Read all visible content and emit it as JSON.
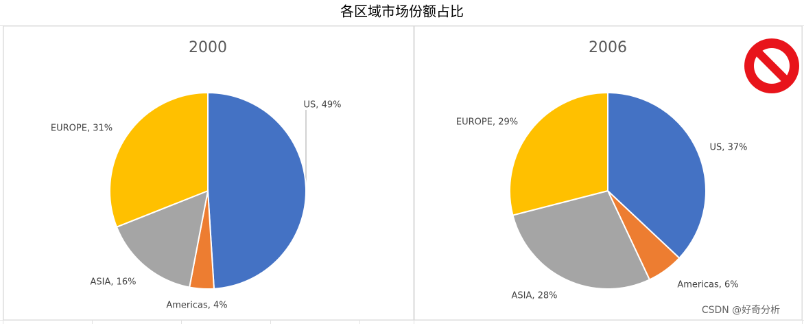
{
  "header": {
    "title": "各区域市场份额占比"
  },
  "watermark": "CSDN @好奇分析",
  "chart_data": [
    {
      "type": "pie",
      "title": "2000",
      "values": [
        49,
        4,
        16,
        31
      ],
      "value_labels": [
        "US, 49%",
        "Americas, 4%",
        "ASIA, 16%",
        "EUROPE, 31%"
      ],
      "colors": [
        "#4472c4",
        "#ed7d31",
        "#a5a5a5",
        "#ffc000"
      ]
    },
    {
      "type": "pie",
      "title": "2006",
      "values": [
        37,
        6,
        28,
        29
      ],
      "value_labels": [
        "US, 37%",
        "Americas, 6%",
        "ASIA, 28%",
        "EUROPE, 29%"
      ],
      "colors": [
        "#4472c4",
        "#ed7d31",
        "#a5a5a5",
        "#ffc000"
      ]
    }
  ]
}
